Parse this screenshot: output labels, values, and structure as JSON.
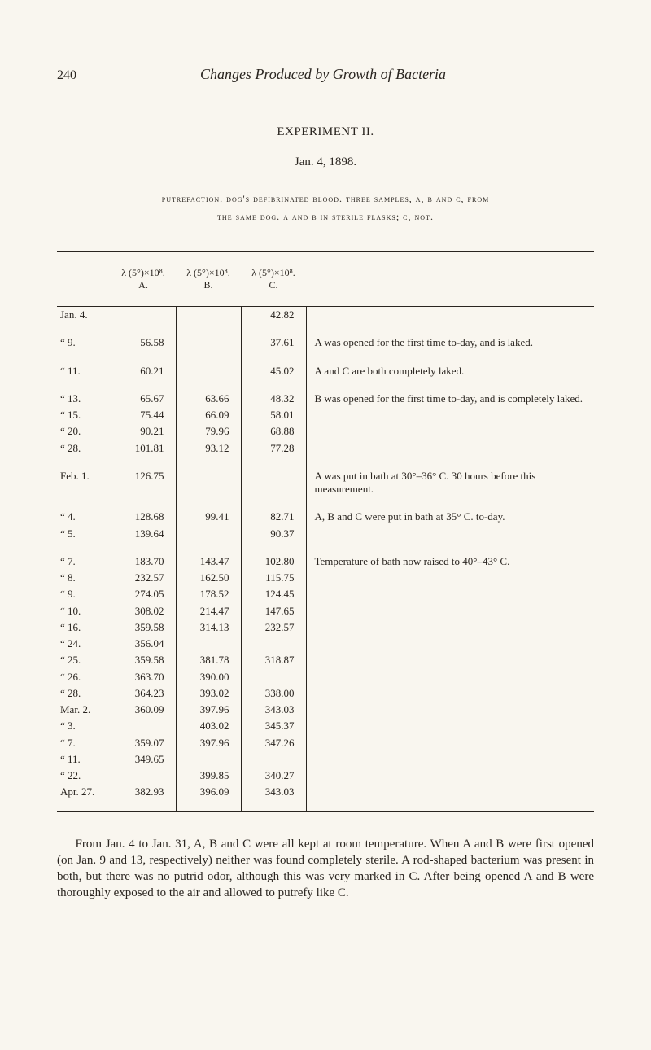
{
  "page_number": "240",
  "running_head": "Changes Produced by Growth of Bacteria",
  "experiment_title": "EXPERIMENT II.",
  "experiment_date": "Jan. 4, 1898.",
  "experiment_desc_line1": "putrefaction.   dog's defibrinated blood.   three samples, a, b and c, from",
  "experiment_desc_line2": "the same dog.   a and b in sterile flasks; c, not.",
  "col_a": "λ (5°)×10⁸.\nA.",
  "col_b": "λ (5°)×10⁸.\nB.",
  "col_c": "λ (5°)×10⁸.\nC.",
  "rows": [
    {
      "date": "Jan. 4.",
      "a": "",
      "b": "",
      "c": "42.82",
      "note": ""
    },
    {
      "date": "“    9.",
      "a": "56.58",
      "b": "",
      "c": "37.61",
      "note": "A was opened for the first time to-day, and is laked."
    },
    {
      "date": "“  11.",
      "a": "60.21",
      "b": "",
      "c": "45.02",
      "note": "A and C are both completely laked."
    },
    {
      "date": "“  13.",
      "a": "65.67",
      "b": "63.66",
      "c": "48.32",
      "note": "B was opened for the first time to-day, and is completely laked."
    },
    {
      "date": "“  15.",
      "a": "75.44",
      "b": "66.09",
      "c": "58.01",
      "note": ""
    },
    {
      "date": "“  20.",
      "a": "90.21",
      "b": "79.96",
      "c": "68.88",
      "note": ""
    },
    {
      "date": "“  28.",
      "a": "101.81",
      "b": "93.12",
      "c": "77.28",
      "note": ""
    },
    {
      "date": "Feb. 1.",
      "a": "126.75",
      "b": "",
      "c": "",
      "note": "A was put in bath at 30°–36° C. 30 hours before this measurement."
    },
    {
      "date": "“    4.",
      "a": "128.68",
      "b": "99.41",
      "c": "82.71",
      "note": "A, B and C were put in bath at 35° C. to-day."
    },
    {
      "date": "“    5.",
      "a": "139.64",
      "b": "",
      "c": "90.37",
      "note": ""
    },
    {
      "date": "“    7.",
      "a": "183.70",
      "b": "143.47",
      "c": "102.80",
      "note": "Temperature of bath now raised to 40°–43° C."
    },
    {
      "date": "“    8.",
      "a": "232.57",
      "b": "162.50",
      "c": "115.75",
      "note": ""
    },
    {
      "date": "“    9.",
      "a": "274.05",
      "b": "178.52",
      "c": "124.45",
      "note": ""
    },
    {
      "date": "“  10.",
      "a": "308.02",
      "b": "214.47",
      "c": "147.65",
      "note": ""
    },
    {
      "date": "“  16.",
      "a": "359.58",
      "b": "314.13",
      "c": "232.57",
      "note": ""
    },
    {
      "date": "“  24.",
      "a": "356.04",
      "b": "",
      "c": "",
      "note": ""
    },
    {
      "date": "“  25.",
      "a": "359.58",
      "b": "381.78",
      "c": "318.87",
      "note": ""
    },
    {
      "date": "“  26.",
      "a": "363.70",
      "b": "390.00",
      "c": "",
      "note": ""
    },
    {
      "date": "“  28.",
      "a": "364.23",
      "b": "393.02",
      "c": "338.00",
      "note": ""
    },
    {
      "date": "Mar. 2.",
      "a": "360.09",
      "b": "397.96",
      "c": "343.03",
      "note": ""
    },
    {
      "date": "“    3.",
      "a": "",
      "b": "403.02",
      "c": "345.37",
      "note": ""
    },
    {
      "date": "“    7.",
      "a": "359.07",
      "b": "397.96",
      "c": "347.26",
      "note": ""
    },
    {
      "date": "“  11.",
      "a": "349.65",
      "b": "",
      "c": "",
      "note": ""
    },
    {
      "date": "“  22.",
      "a": "",
      "b": "399.85",
      "c": "340.27",
      "note": ""
    },
    {
      "date": "Apr. 27.",
      "a": "382.93",
      "b": "396.09",
      "c": "343.03",
      "note": ""
    }
  ],
  "gap_after": [
    0,
    1,
    2,
    6,
    7,
    9
  ],
  "footer_paragraph": "From Jan. 4 to Jan. 31, A, B and C were all kept at room temperature. When A and B were first opened (on Jan. 9 and 13, respectively) neither was found completely sterile. A rod-shaped bacterium was present in both, but there was no putrid odor, although this was very marked in C. After being opened A and B were thoroughly exposed to the air and allowed to putrefy like C."
}
